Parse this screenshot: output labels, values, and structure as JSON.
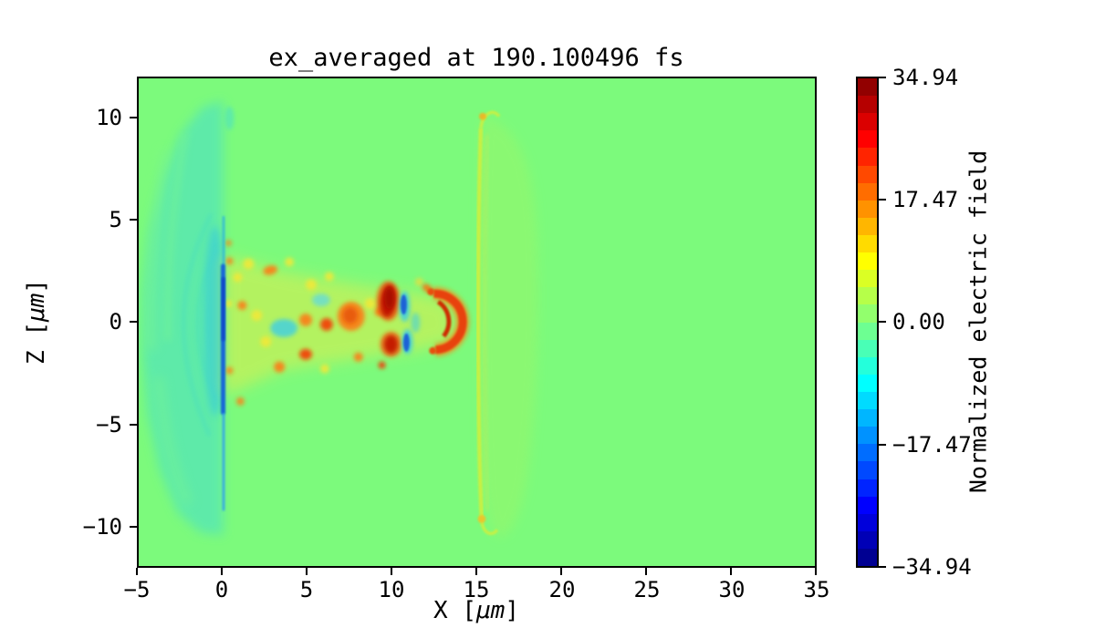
{
  "figure": {
    "title": "ex_averaged at 190.100496 fs",
    "background_color": "#ffffff"
  },
  "axes": {
    "xlabel": {
      "prefix": "X [",
      "unit": "μm",
      "suffix": "]"
    },
    "ylabel": {
      "prefix": "Z [",
      "unit": "μm",
      "suffix": "]"
    },
    "x_ticks": [
      "−5",
      "0",
      "5",
      "10",
      "15",
      "20",
      "25",
      "30",
      "35"
    ],
    "y_ticks": [
      "10",
      "5",
      "0",
      "−5",
      "−10"
    ]
  },
  "colorbar": {
    "label": "Normalized electric field",
    "ticks": [
      "34.94",
      "17.47",
      "0.00",
      "−17.47",
      "−34.94"
    ],
    "vmin": -34.94,
    "vmax": 34.94,
    "colormap": "jet",
    "levels": 28
  },
  "colors": {
    "background_field": "#7CFA7C",
    "plume_teal": "#5CE9AD",
    "front_line_blue": "#1565D8",
    "lobe_yellow": "#F1E838",
    "lobe_orange": "#F5871C",
    "lobe_dark_red": "#C11703",
    "negative_cyan": "#44D0DE",
    "wakefront_green": "#97F76A",
    "wakefront_edge": "#CDEF40"
  },
  "chart_data": {
    "type": "heatmap",
    "title": "ex_averaged at 190.100496 fs",
    "xlabel": "X [μm]",
    "ylabel": "Z [μm]",
    "x_range": [
      -5,
      35
    ],
    "z_range": [
      -12,
      12
    ],
    "x_ticks": [
      -5,
      0,
      5,
      10,
      15,
      20,
      25,
      30,
      35
    ],
    "z_ticks": [
      -10,
      -5,
      0,
      5,
      10
    ],
    "colormap": "jet",
    "discrete_levels": 28,
    "value_range": [
      -34.94,
      34.94
    ],
    "colorbar_label": "Normalized electric field",
    "colorbar_ticks": [
      34.94,
      17.47,
      0.0,
      -17.47,
      -34.94
    ],
    "background_value": 0,
    "features": [
      {
        "name": "expanding plasma plume",
        "description": "teal fan of weak negative field expanding left of the target surface, wispy curved boundary",
        "x_extent": [
          -5,
          0
        ],
        "z_extent": [
          -10.5,
          10.8
        ],
        "approx_value": -4
      },
      {
        "name": "target front field line",
        "description": "thin strong negative (deep blue) vertical line at the target surface",
        "x": 0,
        "z_extent": [
          -9.5,
          3.6
        ],
        "approx_value": -30
      },
      {
        "name": "laser pulse interference cone",
        "description": "horn-shaped region of alternating strong positive (red/orange/yellow) and negative (blue/cyan) lobes around z=0",
        "x_extent": [
          0,
          13.8
        ],
        "z_extent": [
          -3.8,
          3.4
        ],
        "approx_value_range": [
          -30,
          35
        ]
      },
      {
        "name": "strongest positive lobes",
        "points": [
          {
            "x": 9.8,
            "z": 1.3
          },
          {
            "x": 10.1,
            "z": -1.1
          },
          {
            "x": 12.6,
            "z": 0.1
          }
        ],
        "approx_value": 33
      },
      {
        "name": "strongest negative lobes",
        "points": [
          {
            "x": 10.7,
            "z": 1.0
          },
          {
            "x": 10.9,
            "z": -1.0
          },
          {
            "x": 0.0,
            "z": 0.5
          }
        ],
        "approx_value": -28
      },
      {
        "name": "pulse head crescent",
        "description": "red-orange crescent at the pulse front, opening toward -x",
        "x": 12.6,
        "z": 0.1,
        "radius_um": 1.4
      },
      {
        "name": "wakefield front arc",
        "description": "faint yellow-green vertical arc with a bright leading edge line and curled tips at both ends",
        "x_extent": [
          15.0,
          18.6
        ],
        "z_extent": [
          -10.3,
          10.8
        ],
        "approx_value": 4
      }
    ]
  }
}
